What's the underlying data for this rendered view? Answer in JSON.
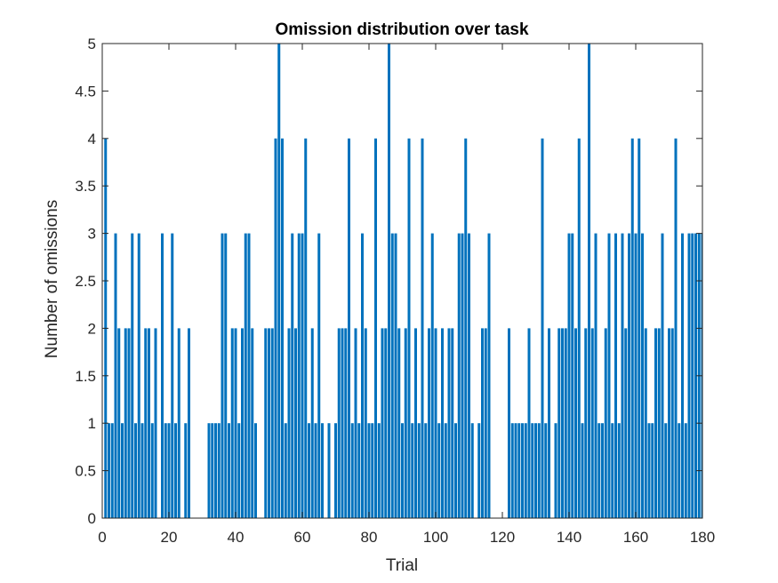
{
  "chart_data": {
    "type": "bar",
    "title": "Omission distribution over task",
    "xlabel": "Trial",
    "ylabel": "Number of omissions",
    "xlim": [
      0,
      180
    ],
    "ylim": [
      0,
      5
    ],
    "xticks": [
      0,
      20,
      40,
      60,
      80,
      100,
      120,
      140,
      160,
      180
    ],
    "xtick_labels": [
      "0",
      "20",
      "40",
      "60",
      "80",
      "100",
      "120",
      "140",
      "160",
      "180"
    ],
    "yticks": [
      0,
      0.5,
      1,
      1.5,
      2,
      2.5,
      3,
      3.5,
      4,
      4.5,
      5
    ],
    "ytick_labels": [
      "0",
      "0.5",
      "1",
      "1.5",
      "2",
      "2.5",
      "3",
      "3.5",
      "4",
      "4.5",
      "5"
    ],
    "grid": false,
    "bar_color": "#0072BD",
    "x": [
      1,
      2,
      3,
      4,
      5,
      6,
      7,
      8,
      9,
      10,
      11,
      12,
      13,
      14,
      15,
      16,
      17,
      18,
      19,
      20,
      21,
      22,
      23,
      24,
      25,
      26,
      27,
      28,
      29,
      30,
      31,
      32,
      33,
      34,
      35,
      36,
      37,
      38,
      39,
      40,
      41,
      42,
      43,
      44,
      45,
      46,
      47,
      48,
      49,
      50,
      51,
      52,
      53,
      54,
      55,
      56,
      57,
      58,
      59,
      60,
      61,
      62,
      63,
      64,
      65,
      66,
      67,
      68,
      69,
      70,
      71,
      72,
      73,
      74,
      75,
      76,
      77,
      78,
      79,
      80,
      81,
      82,
      83,
      84,
      85,
      86,
      87,
      88,
      89,
      90,
      91,
      92,
      93,
      94,
      95,
      96,
      97,
      98,
      99,
      100,
      101,
      102,
      103,
      104,
      105,
      106,
      107,
      108,
      109,
      110,
      111,
      112,
      113,
      114,
      115,
      116,
      117,
      118,
      119,
      120,
      121,
      122,
      123,
      124,
      125,
      126,
      127,
      128,
      129,
      130,
      131,
      132,
      133,
      134,
      135,
      136,
      137,
      138,
      139,
      140,
      141,
      142,
      143,
      144,
      145,
      146,
      147,
      148,
      149,
      150,
      151,
      152,
      153,
      154,
      155,
      156,
      157,
      158,
      159,
      160,
      161,
      162,
      163,
      164,
      165,
      166,
      167,
      168,
      169,
      170,
      171,
      172,
      173,
      174,
      175,
      176,
      177,
      178,
      179,
      180
    ],
    "values": [
      4,
      1,
      1,
      3,
      2,
      1,
      2,
      2,
      3,
      1,
      3,
      1,
      2,
      2,
      1,
      2,
      0,
      3,
      1,
      1,
      3,
      1,
      2,
      0,
      1,
      2,
      0,
      0,
      0,
      0,
      0,
      1,
      1,
      1,
      1,
      3,
      3,
      1,
      2,
      2,
      1,
      2,
      3,
      3,
      2,
      1,
      0,
      0,
      2,
      2,
      2,
      4,
      5,
      4,
      1,
      2,
      3,
      2,
      3,
      3,
      4,
      1,
      2,
      1,
      3,
      1,
      0,
      1,
      0,
      1,
      2,
      2,
      2,
      4,
      1,
      2,
      1,
      3,
      2,
      1,
      1,
      4,
      1,
      2,
      2,
      5,
      3,
      3,
      2,
      1,
      2,
      4,
      1,
      2,
      1,
      4,
      1,
      2,
      3,
      2,
      1,
      2,
      1,
      2,
      2,
      1,
      3,
      3,
      4,
      3,
      1,
      0,
      1,
      2,
      2,
      3,
      0,
      0,
      0,
      0,
      0,
      2,
      1,
      1,
      1,
      1,
      1,
      2,
      1,
      1,
      1,
      4,
      1,
      2,
      0,
      1,
      2,
      2,
      2,
      3,
      3,
      2,
      4,
      1,
      2,
      5,
      2,
      3,
      1,
      1,
      2,
      3,
      1,
      3,
      1,
      3,
      2,
      3,
      4,
      3,
      4,
      3,
      2,
      1,
      1,
      2,
      2,
      3,
      1,
      2,
      2,
      4,
      1,
      3,
      1,
      3,
      3,
      3,
      3,
      3
    ]
  }
}
